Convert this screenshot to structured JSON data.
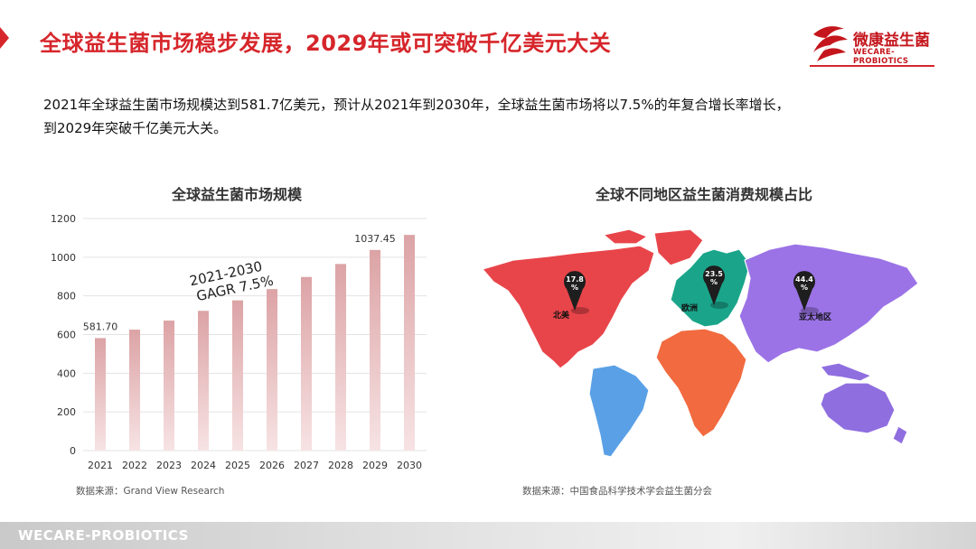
{
  "header": {
    "title": "全球益生菌市场稳步发展，2029年或可突破千亿美元大关",
    "accent_color": "#d6262b"
  },
  "logo": {
    "name_cn": "微康益生菌",
    "name_en": "WECARE-PROBIOTICS"
  },
  "intro": {
    "line1": "2021年全球益生菌市场规模达到581.7亿美元，预计从2021年到2030年，全球益生菌市场将以7.5%的年复合增长率增长，",
    "line2": "到2029年突破千亿美元大关。"
  },
  "chart_data": [
    {
      "type": "bar",
      "title": "全球益生菌市场规模",
      "categories": [
        "2021",
        "2022",
        "2023",
        "2024",
        "2025",
        "2026",
        "2027",
        "2028",
        "2029",
        "2030"
      ],
      "values": [
        581.7,
        625.3,
        672.2,
        722.6,
        776.8,
        835.1,
        897.7,
        965.0,
        1037.45,
        1115.3
      ],
      "data_labels": {
        "2021": "581.70",
        "2029": "1037.45"
      },
      "ylim": [
        0,
        1200
      ],
      "yticks": [
        0,
        200,
        400,
        600,
        800,
        1000,
        1200
      ],
      "grid": true,
      "annotation": {
        "line1": "2021-2030",
        "line2": "GAGR 7.5%"
      },
      "bar_color_top": "#dca3a5",
      "bar_color_bottom": "#f7e3e4",
      "source": "数据来源：Grand View Research"
    },
    {
      "type": "map",
      "title": "全球不同地区益生菌消费规模占比",
      "regions": [
        {
          "name": "北美",
          "value": 17.8,
          "label": "17.8\n%",
          "color": "#e8454a"
        },
        {
          "name": "欧洲",
          "value": 23.5,
          "label": "23.5\n%",
          "color": "#1aa58a"
        },
        {
          "name": "亚太地区",
          "value": 44.4,
          "label": "44.4\n%",
          "color": "#9b73e6"
        },
        {
          "name": "",
          "color": "#f26a3f"
        },
        {
          "name": "",
          "color": "#5aa0e6"
        },
        {
          "name": "",
          "color": "#8f6ee0"
        }
      ],
      "source": "数据来源：中国食品科学技术学会益生菌分会"
    }
  ],
  "footer": {
    "text": "WECARE-PROBIOTICS"
  }
}
